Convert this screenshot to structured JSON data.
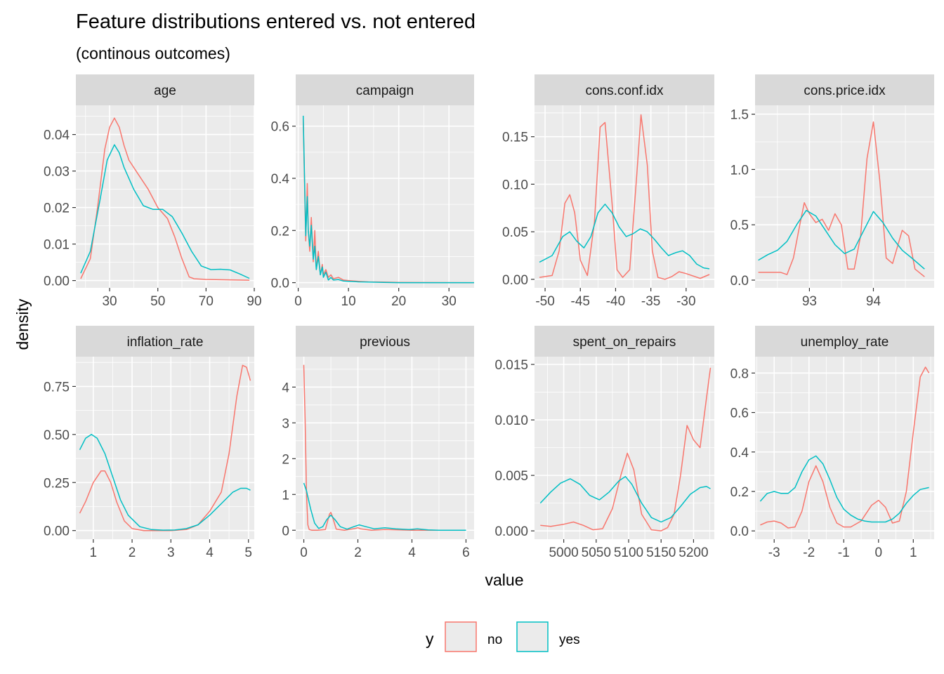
{
  "title": "Feature distributions entered vs. not entered",
  "subtitle": "(continous outcomes)",
  "xlabel": "value",
  "ylabel": "density",
  "legend": {
    "title": "y",
    "items": [
      {
        "label": "no",
        "color": "#F8766D"
      },
      {
        "label": "yes",
        "color": "#00BFC4"
      }
    ]
  },
  "colors": {
    "no": "#F8766D",
    "yes": "#00BFC4",
    "panel_bg": "#EBEBEB",
    "strip_bg": "#D9D9D9",
    "grid": "#FFFFFF"
  },
  "chart_data": [
    {
      "type": "line",
      "name": "age",
      "xlim": [
        16,
        90
      ],
      "ylim": [
        -0.002,
        0.048
      ],
      "xticks": [
        30,
        50,
        70,
        90
      ],
      "xtick_labels": [
        "30",
        "50",
        "70",
        "90"
      ],
      "yticks": [
        0,
        0.01,
        0.02,
        0.03,
        0.04
      ],
      "ytick_labels": [
        "0.00",
        "0.01",
        "0.02",
        "0.03",
        "0.04"
      ],
      "series": [
        {
          "name": "no",
          "x": [
            18,
            22,
            25,
            28,
            30,
            32,
            34,
            36,
            38,
            42,
            46,
            50,
            54,
            57,
            60,
            63,
            65,
            70,
            80,
            88
          ],
          "y": [
            0.0005,
            0.006,
            0.02,
            0.036,
            0.042,
            0.0445,
            0.042,
            0.037,
            0.033,
            0.029,
            0.025,
            0.02,
            0.017,
            0.012,
            0.006,
            0.001,
            0.0005,
            0.0003,
            0.0002,
            0.0001
          ]
        },
        {
          "name": "yes",
          "x": [
            18,
            22,
            26,
            29,
            32,
            34,
            36,
            40,
            44,
            48,
            52,
            56,
            60,
            64,
            68,
            72,
            76,
            80,
            84,
            88
          ],
          "y": [
            0.002,
            0.008,
            0.022,
            0.033,
            0.0372,
            0.035,
            0.031,
            0.025,
            0.0205,
            0.0195,
            0.0195,
            0.0175,
            0.013,
            0.008,
            0.004,
            0.003,
            0.0031,
            0.0029,
            0.0018,
            0.0006
          ]
        }
      ]
    },
    {
      "type": "line",
      "name": "campaign",
      "xlim": [
        -0.5,
        35
      ],
      "ylim": [
        -0.02,
        0.68
      ],
      "xticks": [
        0,
        10,
        20,
        30
      ],
      "xtick_labels": [
        "0",
        "10",
        "20",
        "30"
      ],
      "yticks": [
        0,
        0.2,
        0.4,
        0.6
      ],
      "ytick_labels": [
        "0.0",
        "0.2",
        "0.4",
        "0.6"
      ],
      "series": [
        {
          "name": "no",
          "x": [
            1,
            1.2,
            1.5,
            1.8,
            2,
            2.3,
            2.6,
            3,
            3.3,
            3.6,
            4,
            4.4,
            4.8,
            5,
            5.5,
            6,
            6.5,
            7,
            8,
            9,
            10,
            12,
            14,
            17,
            20,
            35
          ],
          "y": [
            0.63,
            0.43,
            0.16,
            0.38,
            0.2,
            0.12,
            0.25,
            0.08,
            0.2,
            0.05,
            0.12,
            0.03,
            0.07,
            0.03,
            0.05,
            0.02,
            0.03,
            0.015,
            0.02,
            0.01,
            0.008,
            0.005,
            0.003,
            0.002,
            0.001,
            0.0
          ]
        },
        {
          "name": "yes",
          "x": [
            1,
            1.2,
            1.5,
            1.8,
            2,
            2.3,
            2.6,
            3,
            3.3,
            3.6,
            4,
            4.4,
            4.8,
            5,
            5.5,
            6,
            6.5,
            7,
            8,
            9,
            10,
            12,
            14,
            17,
            20,
            35
          ],
          "y": [
            0.64,
            0.45,
            0.18,
            0.33,
            0.2,
            0.14,
            0.22,
            0.09,
            0.14,
            0.05,
            0.1,
            0.03,
            0.06,
            0.02,
            0.04,
            0.01,
            0.02,
            0.01,
            0.012,
            0.006,
            0.005,
            0.003,
            0.002,
            0.001,
            0.0,
            0.0
          ]
        }
      ]
    },
    {
      "type": "line",
      "name": "cons.conf.idx",
      "xlim": [
        -51.5,
        -26
      ],
      "ylim": [
        -0.009,
        0.183
      ],
      "xticks": [
        -50,
        -45,
        -40,
        -35,
        -30
      ],
      "xtick_labels": [
        "-50",
        "-45",
        "-40",
        "-35",
        "-30"
      ],
      "yticks": [
        0,
        0.05,
        0.1,
        0.15
      ],
      "ytick_labels": [
        "0.00",
        "0.05",
        "0.10",
        "0.15"
      ],
      "series": [
        {
          "name": "no",
          "x": [
            -50.8,
            -49,
            -48,
            -47.2,
            -46.5,
            -45.8,
            -45,
            -44,
            -43,
            -42.2,
            -41.5,
            -40.5,
            -39.8,
            -39,
            -38,
            -37,
            -36.4,
            -35.5,
            -34.8,
            -34,
            -33,
            -32,
            -31,
            -30,
            -28,
            -26.7
          ],
          "y": [
            0.002,
            0.004,
            0.03,
            0.08,
            0.089,
            0.07,
            0.02,
            0.004,
            0.06,
            0.16,
            0.165,
            0.08,
            0.01,
            0.002,
            0.01,
            0.11,
            0.173,
            0.12,
            0.03,
            0.002,
            0.0,
            0.003,
            0.008,
            0.006,
            0.001,
            0.005
          ]
        },
        {
          "name": "yes",
          "x": [
            -50.8,
            -49,
            -47.5,
            -46.5,
            -45.5,
            -44.5,
            -43.5,
            -42.5,
            -41.5,
            -40.5,
            -39.5,
            -38.5,
            -37.5,
            -36.5,
            -35.5,
            -34.5,
            -33.5,
            -32.5,
            -31.5,
            -30.5,
            -29.5,
            -28.5,
            -27.5,
            -26.7
          ],
          "y": [
            0.018,
            0.025,
            0.045,
            0.05,
            0.04,
            0.033,
            0.045,
            0.07,
            0.079,
            0.07,
            0.055,
            0.045,
            0.048,
            0.053,
            0.05,
            0.042,
            0.033,
            0.025,
            0.028,
            0.03,
            0.025,
            0.016,
            0.012,
            0.011
          ]
        }
      ]
    },
    {
      "type": "line",
      "name": "cons.price.idx",
      "xlim": [
        92.15,
        94.95
      ],
      "ylim": [
        -0.07,
        1.58
      ],
      "xticks": [
        93,
        94
      ],
      "xtick_labels": [
        "93",
        "94"
      ],
      "yticks": [
        0,
        0.5,
        1.0,
        1.5
      ],
      "ytick_labels": [
        "0.0",
        "0.5",
        "1.0",
        "1.5"
      ],
      "series": [
        {
          "name": "no",
          "x": [
            92.2,
            92.4,
            92.55,
            92.65,
            92.75,
            92.85,
            92.92,
            93.0,
            93.1,
            93.2,
            93.3,
            93.4,
            93.5,
            93.6,
            93.7,
            93.8,
            93.9,
            94.0,
            94.1,
            94.2,
            94.3,
            94.45,
            94.55,
            94.65,
            94.8
          ],
          "y": [
            0.07,
            0.07,
            0.07,
            0.05,
            0.2,
            0.5,
            0.7,
            0.6,
            0.52,
            0.55,
            0.45,
            0.6,
            0.5,
            0.1,
            0.1,
            0.4,
            1.1,
            1.43,
            0.9,
            0.2,
            0.15,
            0.45,
            0.4,
            0.1,
            0.03
          ]
        },
        {
          "name": "yes",
          "x": [
            92.2,
            92.35,
            92.5,
            92.65,
            92.8,
            92.95,
            93.1,
            93.25,
            93.4,
            93.55,
            93.7,
            93.85,
            94.0,
            94.15,
            94.3,
            94.45,
            94.6,
            94.8
          ],
          "y": [
            0.18,
            0.23,
            0.27,
            0.35,
            0.5,
            0.63,
            0.58,
            0.45,
            0.32,
            0.24,
            0.28,
            0.45,
            0.62,
            0.52,
            0.38,
            0.27,
            0.2,
            0.1
          ]
        }
      ]
    },
    {
      "type": "line",
      "name": "inflation_rate",
      "xlim": [
        0.55,
        5.15
      ],
      "ylim": [
        -0.045,
        0.905
      ],
      "xticks": [
        1,
        2,
        3,
        4,
        5
      ],
      "xtick_labels": [
        "1",
        "2",
        "3",
        "4",
        "5"
      ],
      "yticks": [
        0,
        0.25,
        0.5,
        0.75
      ],
      "ytick_labels": [
        "0.00",
        "0.25",
        "0.50",
        "0.75"
      ],
      "series": [
        {
          "name": "no",
          "x": [
            0.65,
            0.8,
            1.0,
            1.2,
            1.3,
            1.45,
            1.6,
            1.8,
            2.0,
            2.3,
            2.6,
            3.0,
            3.4,
            3.7,
            4.0,
            4.3,
            4.5,
            4.7,
            4.85,
            4.95,
            5.05
          ],
          "y": [
            0.09,
            0.15,
            0.25,
            0.31,
            0.31,
            0.25,
            0.15,
            0.05,
            0.01,
            0.0,
            0.0,
            0.0,
            0.005,
            0.03,
            0.1,
            0.2,
            0.4,
            0.7,
            0.86,
            0.85,
            0.78
          ]
        },
        {
          "name": "yes",
          "x": [
            0.65,
            0.8,
            0.95,
            1.1,
            1.3,
            1.5,
            1.7,
            1.9,
            2.2,
            2.5,
            2.8,
            3.1,
            3.4,
            3.7,
            4.0,
            4.3,
            4.6,
            4.8,
            4.95,
            5.05
          ],
          "y": [
            0.42,
            0.48,
            0.5,
            0.48,
            0.4,
            0.28,
            0.16,
            0.08,
            0.02,
            0.005,
            0.002,
            0.003,
            0.01,
            0.03,
            0.08,
            0.14,
            0.2,
            0.22,
            0.22,
            0.21
          ]
        }
      ]
    },
    {
      "type": "line",
      "name": "previous",
      "xlim": [
        -0.3,
        6.3
      ],
      "ylim": [
        -0.25,
        4.85
      ],
      "xticks": [
        0,
        2,
        4,
        6
      ],
      "xtick_labels": [
        "0",
        "2",
        "4",
        "6"
      ],
      "yticks": [
        0,
        1,
        2,
        3,
        4
      ],
      "ytick_labels": [
        "0",
        "1",
        "2",
        "3",
        "4"
      ],
      "series": [
        {
          "name": "no",
          "x": [
            0,
            0.05,
            0.1,
            0.15,
            0.2,
            0.3,
            0.5,
            0.8,
            0.95,
            1.0,
            1.05,
            1.2,
            1.5,
            1.9,
            2.0,
            2.1,
            2.5,
            3.0,
            4.0,
            6.0
          ],
          "y": [
            4.62,
            3.0,
            1.0,
            0.15,
            0.02,
            0.0,
            0.0,
            0.02,
            0.45,
            0.5,
            0.4,
            0.03,
            0.0,
            0.05,
            0.07,
            0.04,
            0.0,
            0.02,
            0.0,
            0.0
          ]
        },
        {
          "name": "yes",
          "x": [
            0,
            0.1,
            0.25,
            0.4,
            0.55,
            0.7,
            0.85,
            1.0,
            1.15,
            1.35,
            1.6,
            1.85,
            2.05,
            2.3,
            2.6,
            3.0,
            3.4,
            3.9,
            4.2,
            4.6,
            5.0,
            6.0
          ],
          "y": [
            1.32,
            1.1,
            0.6,
            0.2,
            0.05,
            0.1,
            0.3,
            0.42,
            0.3,
            0.1,
            0.03,
            0.1,
            0.15,
            0.1,
            0.04,
            0.07,
            0.04,
            0.02,
            0.04,
            0.01,
            0.0,
            0.0
          ]
        }
      ]
    },
    {
      "type": "line",
      "name": "spent_on_repairs",
      "xlim": [
        4955,
        5232
      ],
      "ylim": [
        -0.00075,
        0.0157
      ],
      "xticks": [
        5000,
        5050,
        5100,
        5150,
        5200
      ],
      "xtick_labels": [
        "5000",
        "5050",
        "5100",
        "5150",
        "5200"
      ],
      "yticks": [
        0,
        0.005,
        0.01,
        0.015
      ],
      "ytick_labels": [
        "0.000",
        "0.005",
        "0.010",
        "0.015"
      ],
      "series": [
        {
          "name": "no",
          "x": [
            4964,
            4980,
            5000,
            5015,
            5030,
            5045,
            5060,
            5075,
            5088,
            5098,
            5108,
            5120,
            5135,
            5150,
            5160,
            5170,
            5180,
            5190,
            5200,
            5210,
            5220,
            5226
          ],
          "y": [
            0.0005,
            0.0004,
            0.0006,
            0.0008,
            0.0005,
            0.0001,
            0.0002,
            0.002,
            0.005,
            0.007,
            0.0055,
            0.0015,
            0.0001,
            0.0,
            0.0003,
            0.0015,
            0.005,
            0.0095,
            0.0082,
            0.0075,
            0.012,
            0.0147
          ]
        },
        {
          "name": "yes",
          "x": [
            4964,
            4980,
            4995,
            5010,
            5025,
            5040,
            5055,
            5070,
            5085,
            5095,
            5105,
            5120,
            5135,
            5150,
            5165,
            5180,
            5195,
            5210,
            5220,
            5226
          ],
          "y": [
            0.0025,
            0.0035,
            0.0043,
            0.0047,
            0.0042,
            0.0032,
            0.0028,
            0.0035,
            0.0045,
            0.0049,
            0.0042,
            0.0025,
            0.0012,
            0.0008,
            0.0012,
            0.0022,
            0.0033,
            0.0039,
            0.004,
            0.0038
          ]
        }
      ]
    },
    {
      "type": "line",
      "name": "unemploy_rate",
      "xlim": [
        -3.55,
        1.6
      ],
      "ylim": [
        -0.042,
        0.883
      ],
      "xticks": [
        -3,
        -2,
        -1,
        0,
        1
      ],
      "xtick_labels": [
        "-3",
        "-2",
        "-1",
        "0",
        "1"
      ],
      "yticks": [
        0,
        0.2,
        0.4,
        0.6,
        0.8
      ],
      "ytick_labels": [
        "0.0",
        "0.2",
        "0.4",
        "0.6",
        "0.8"
      ],
      "series": [
        {
          "name": "no",
          "x": [
            -3.4,
            -3.2,
            -3.0,
            -2.8,
            -2.6,
            -2.4,
            -2.2,
            -2.0,
            -1.8,
            -1.6,
            -1.4,
            -1.2,
            -1.0,
            -0.8,
            -0.5,
            -0.2,
            0.0,
            0.2,
            0.4,
            0.6,
            0.8,
            1.0,
            1.2,
            1.35,
            1.45
          ],
          "y": [
            0.03,
            0.045,
            0.05,
            0.04,
            0.015,
            0.02,
            0.1,
            0.25,
            0.33,
            0.25,
            0.12,
            0.04,
            0.02,
            0.02,
            0.05,
            0.13,
            0.155,
            0.12,
            0.04,
            0.05,
            0.2,
            0.5,
            0.78,
            0.83,
            0.8
          ]
        },
        {
          "name": "yes",
          "x": [
            -3.4,
            -3.2,
            -3.0,
            -2.8,
            -2.6,
            -2.4,
            -2.2,
            -2.0,
            -1.8,
            -1.6,
            -1.4,
            -1.2,
            -1.0,
            -0.8,
            -0.6,
            -0.4,
            -0.2,
            0.0,
            0.2,
            0.4,
            0.6,
            0.8,
            1.0,
            1.2,
            1.45
          ],
          "y": [
            0.15,
            0.19,
            0.2,
            0.19,
            0.19,
            0.22,
            0.3,
            0.36,
            0.38,
            0.34,
            0.26,
            0.17,
            0.11,
            0.08,
            0.06,
            0.05,
            0.045,
            0.045,
            0.045,
            0.06,
            0.09,
            0.14,
            0.18,
            0.21,
            0.22
          ]
        }
      ]
    }
  ]
}
